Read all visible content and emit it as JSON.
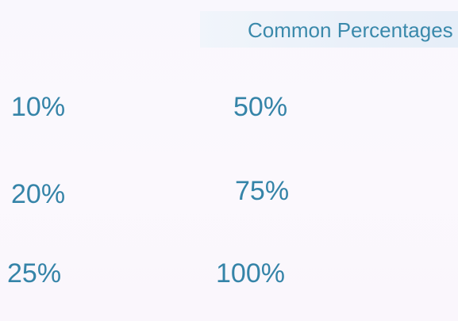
{
  "title": "Common Percentages",
  "percentages": {
    "left_column": [
      "10%",
      "20%",
      "25%"
    ],
    "right_column": [
      "50%",
      "75%",
      "100%"
    ]
  }
}
